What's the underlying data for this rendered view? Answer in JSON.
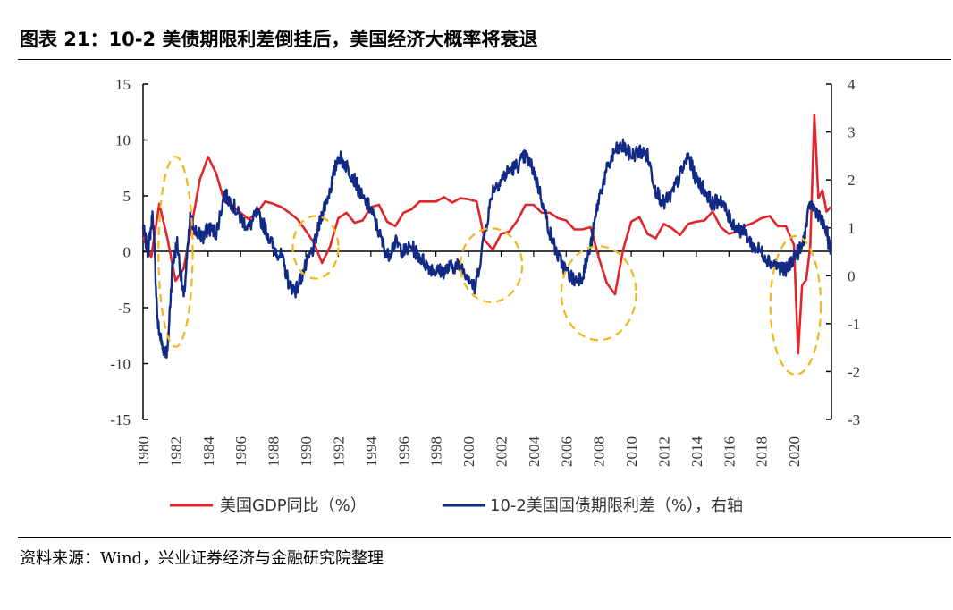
{
  "header": {
    "title": "图表 21：10-2 美债期限利差倒挂后，美国经济大概率将衰退"
  },
  "footer": {
    "source": "资料来源：Wind，兴业证券经济与金融研究院整理"
  },
  "colors": {
    "gdp": "#e0262b",
    "spread": "#102a86",
    "highlight": "#f2b51a",
    "axis": "#000000"
  },
  "chart_data": {
    "type": "line",
    "title": "10-2 美债期限利差倒挂后，美国经济大概率将衰退",
    "x_range": [
      1980,
      2022.3
    ],
    "x_ticks": [
      "1980",
      "1982",
      "1984",
      "1986",
      "1988",
      "1990",
      "1992",
      "1994",
      "1996",
      "1998",
      "2000",
      "2002",
      "2004",
      "2006",
      "2008",
      "2010",
      "2012",
      "2014",
      "2016",
      "2018",
      "2020"
    ],
    "y_left": {
      "label": "美国GDP同比（%）",
      "ylim": [
        -15,
        15
      ],
      "ticks": [
        "15",
        "10",
        "5",
        "0",
        "-5",
        "-10",
        "-15"
      ]
    },
    "y_right": {
      "label": "10-2美国国债期限利差（%），右轴",
      "ylim": [
        -3,
        4
      ],
      "ticks": [
        "4",
        "3",
        "2",
        "1",
        "0",
        "-1",
        "-2",
        "-3"
      ]
    },
    "series": [
      {
        "name": "美国GDP同比（%）",
        "axis": "left",
        "x": [
          1980,
          1980.5,
          1981,
          1981.5,
          1982,
          1982.5,
          1983,
          1983.5,
          1984,
          1984.5,
          1985,
          1985.5,
          1986,
          1986.5,
          1987,
          1987.5,
          1988,
          1988.5,
          1989,
          1989.5,
          1990,
          1990.5,
          1991,
          1991.5,
          1992,
          1992.5,
          1993,
          1993.5,
          1994,
          1994.5,
          1995,
          1995.5,
          1996,
          1996.5,
          1997,
          1997.5,
          1998,
          1998.5,
          1999,
          1999.5,
          2000,
          2000.5,
          2001,
          2001.5,
          2002,
          2002.5,
          2003,
          2003.5,
          2004,
          2004.5,
          2005,
          2005.5,
          2006,
          2006.5,
          2007,
          2007.5,
          2008,
          2008.5,
          2009,
          2009.5,
          2010,
          2010.5,
          2011,
          2011.5,
          2012,
          2012.5,
          2013,
          2013.5,
          2014,
          2014.5,
          2015,
          2015.5,
          2016,
          2016.5,
          2017,
          2017.5,
          2018,
          2018.5,
          2019,
          2019.5,
          2020,
          2020.25,
          2020.5,
          2020.75,
          2021,
          2021.25,
          2021.5,
          2021.75,
          2022,
          2022.25
        ],
        "values": [
          1.3,
          -0.5,
          4.3,
          1.2,
          -2.6,
          -1.5,
          2.5,
          6.5,
          8.5,
          7.0,
          4.5,
          4.0,
          3.5,
          2.9,
          3.5,
          4.5,
          4.3,
          4.0,
          3.5,
          2.9,
          1.9,
          0.8,
          -1.0,
          0.5,
          3.0,
          3.5,
          2.6,
          2.8,
          4.0,
          4.2,
          2.7,
          2.3,
          3.5,
          3.8,
          4.5,
          4.5,
          4.5,
          4.9,
          4.4,
          4.8,
          4.7,
          4.5,
          1.0,
          0.2,
          1.6,
          1.8,
          2.8,
          4.2,
          4.2,
          3.5,
          3.5,
          3.0,
          2.8,
          2.0,
          2.0,
          2.2,
          -0.5,
          -2.8,
          -3.8,
          0.2,
          2.7,
          3.1,
          1.6,
          1.2,
          2.5,
          2.1,
          1.5,
          2.5,
          2.7,
          2.8,
          3.6,
          2.2,
          1.6,
          1.8,
          2.3,
          2.6,
          3.0,
          3.2,
          2.3,
          2.3,
          0.6,
          -9.1,
          -3.0,
          -2.5,
          0.5,
          12.2,
          4.8,
          5.5,
          3.6,
          4.0
        ]
      },
      {
        "name": "10-2美国国债期限利差（%），右轴",
        "axis": "right",
        "x": [
          1980,
          1980.3,
          1980.6,
          1980.9,
          1981.2,
          1981.5,
          1981.8,
          1982.1,
          1982.5,
          1982.9,
          1983.3,
          1983.7,
          1984,
          1984.5,
          1985,
          1985.5,
          1986,
          1986.5,
          1987,
          1987.5,
          1988,
          1988.5,
          1989,
          1989.4,
          1990,
          1990.5,
          1991,
          1991.5,
          1992,
          1992.5,
          1993,
          1993.5,
          1994,
          1994.5,
          1995,
          1995.5,
          1996,
          1996.5,
          1997,
          1997.5,
          1998,
          1998.5,
          1999,
          1999.5,
          2000,
          2000.4,
          2001,
          2001.5,
          2002,
          2002.5,
          2003,
          2003.5,
          2004,
          2004.5,
          2005,
          2005.5,
          2006,
          2006.5,
          2007,
          2007.5,
          2008,
          2008.5,
          2009,
          2009.5,
          2010,
          2010.5,
          2011,
          2011.5,
          2012,
          2012.5,
          2013,
          2013.5,
          2014,
          2014.5,
          2015,
          2015.5,
          2016,
          2016.5,
          2017,
          2017.5,
          2018,
          2018.5,
          2019,
          2019.5,
          2020,
          2020.5,
          2021,
          2021.5,
          2022,
          2022.25
        ],
        "values": [
          1.0,
          0.5,
          1.3,
          -1.0,
          -1.5,
          -1.6,
          0.2,
          0.7,
          -0.5,
          1.2,
          0.9,
          0.8,
          1.0,
          0.9,
          1.7,
          1.5,
          1.2,
          1.0,
          1.3,
          1.0,
          0.6,
          0.4,
          -0.2,
          -0.3,
          0.2,
          0.6,
          1.3,
          1.8,
          2.5,
          2.3,
          2.0,
          1.6,
          1.4,
          0.9,
          0.4,
          0.7,
          0.5,
          0.6,
          0.4,
          0.2,
          0.1,
          0.1,
          0.2,
          0.2,
          0.0,
          -0.3,
          0.9,
          1.8,
          2.0,
          2.2,
          2.3,
          2.5,
          2.2,
          1.6,
          0.9,
          0.4,
          0.1,
          -0.1,
          0.0,
          0.6,
          1.6,
          2.2,
          2.6,
          2.7,
          2.5,
          2.6,
          2.5,
          1.8,
          1.5,
          1.7,
          2.1,
          2.5,
          2.0,
          1.8,
          1.5,
          1.6,
          1.2,
          1.0,
          0.9,
          0.6,
          0.5,
          0.3,
          0.2,
          0.1,
          0.4,
          0.6,
          1.5,
          1.3,
          0.9,
          0.5
        ]
      }
    ],
    "legend": {
      "placement": "bottom",
      "entries": [
        "美国GDP同比（%）",
        "10-2美国国债期限利差（%），右轴"
      ]
    },
    "annotations": "dashed yellow ellipses marking spread inversions before recessions"
  }
}
